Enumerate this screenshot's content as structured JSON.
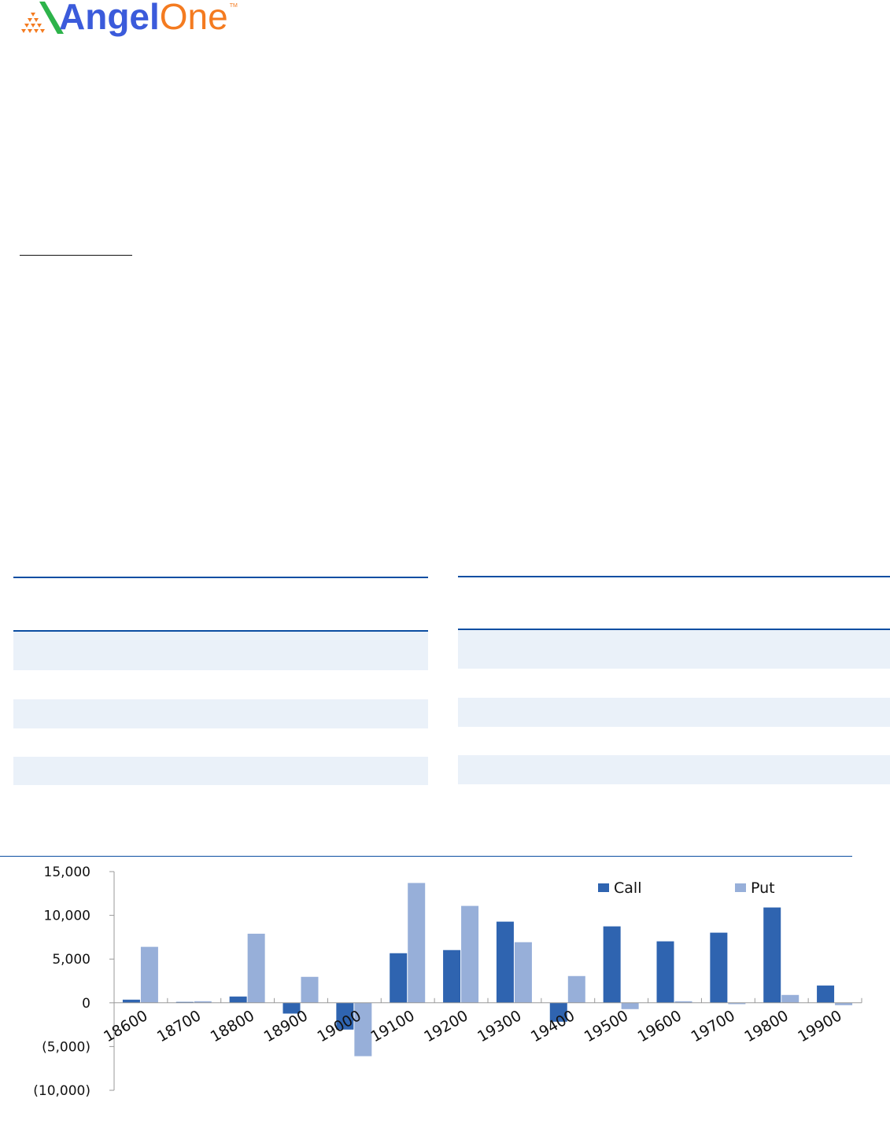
{
  "logo": {
    "text_part1": "Angel",
    "text_part2": "One",
    "trademark": "TM",
    "colors": {
      "blue": "#3b5bdb",
      "orange": "#f47b20",
      "green": "#2db34a"
    }
  },
  "colors": {
    "rule": "#0b4ea2",
    "row_shade": "#eaf1f9",
    "call": "#2f64b0",
    "put": "#97afd9"
  },
  "tables": [
    {
      "name": "left",
      "rows": 5
    },
    {
      "name": "right",
      "rows": 5
    }
  ],
  "chart_data": {
    "type": "bar",
    "title": "",
    "xlabel": "",
    "ylabel": "",
    "categories": [
      "18600",
      "18700",
      "18800",
      "18900",
      "19000",
      "19100",
      "19200",
      "19300",
      "19400",
      "19500",
      "19600",
      "19700",
      "19800",
      "19900"
    ],
    "series": [
      {
        "name": "Call",
        "values": [
          360,
          100,
          720,
          -1230,
          -3060,
          5670,
          6030,
          9280,
          -2160,
          8740,
          7030,
          8020,
          10900,
          1980
        ]
      },
      {
        "name": "Put",
        "values": [
          6400,
          180,
          7900,
          2970,
          -6100,
          13700,
          11080,
          6930,
          3060,
          -720,
          180,
          -150,
          900,
          -270
        ]
      }
    ],
    "ylim": [
      -10000,
      15000
    ],
    "yticks": [
      15000,
      10000,
      5000,
      0,
      -5000,
      -10000
    ],
    "ytick_labels": [
      "15,000",
      "10,000",
      "5,000",
      "0",
      "(5,000)",
      "(10,000)"
    ],
    "legend_position": "top-right",
    "grid": false
  }
}
